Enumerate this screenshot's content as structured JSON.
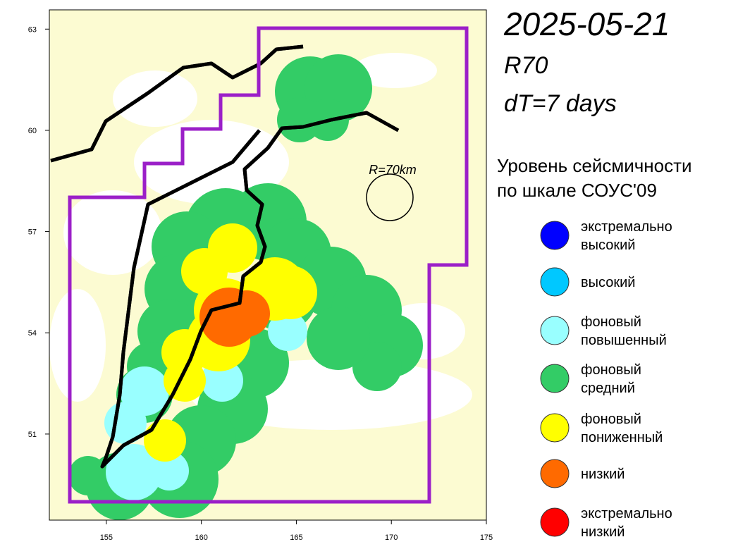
{
  "header": {
    "date": "2025-05-21",
    "radius_label": "R70",
    "period": "dT=7 days"
  },
  "map": {
    "xlim": [
      152,
      175
    ],
    "ylim": [
      48.45,
      63.57
    ],
    "xticks": [
      155,
      160,
      165,
      170,
      175
    ],
    "yticks": [
      51,
      54,
      57,
      60,
      63
    ],
    "circle_label": "R=70km"
  },
  "legend": {
    "title": [
      "Уровень сейсмичности",
      "по шкале СОУС'09"
    ],
    "items": [
      {
        "label": [
          "экстремально",
          "высокий"
        ],
        "color": "#0000ff"
      },
      {
        "label": [
          "высокий"
        ],
        "color": "#00c8ff"
      },
      {
        "label": [
          "фоновый",
          "повышенный"
        ],
        "color": "#99ffff"
      },
      {
        "label": [
          "фоновый",
          "средний"
        ],
        "color": "#33cc66"
      },
      {
        "label": [
          "фоновый",
          "пониженный"
        ],
        "color": "#ffff00"
      },
      {
        "label": [
          "низкий"
        ],
        "color": "#ff6a00"
      },
      {
        "label": [
          "экстремально",
          "низкий"
        ],
        "color": "#ff0000"
      }
    ]
  }
}
